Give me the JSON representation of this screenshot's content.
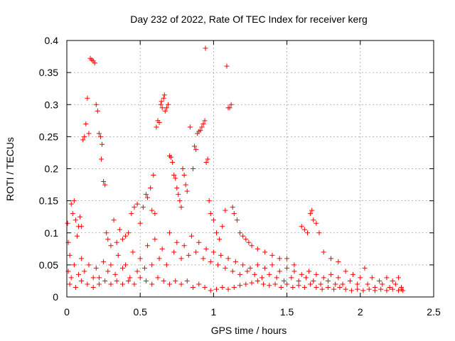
{
  "chart_data": {
    "type": "scatter",
    "title": "Day 232 of 2022, Rate Of TEC Index for receiver kerg",
    "xlabel": "GPS time / hours",
    "ylabel": "ROTI / TECUs",
    "xlim": [
      0,
      2.5
    ],
    "ylim": [
      0,
      0.4
    ],
    "x_ticks": [
      0,
      0.5,
      1,
      1.5,
      2,
      2.5
    ],
    "x_tick_labels": [
      "0",
      "0.5",
      "1",
      "1.5",
      "2",
      "2.5"
    ],
    "y_ticks": [
      0,
      0.05,
      0.1,
      0.15,
      0.2,
      0.25,
      0.3,
      0.35,
      0.4
    ],
    "y_tick_labels": [
      "0",
      "0.05",
      "0.1",
      "0.15",
      "0.2",
      "0.25",
      "0.3",
      "0.35",
      "0.4"
    ],
    "grid": true,
    "marker": "plus",
    "marker_color": "#ff0000",
    "series": [
      {
        "points": [
          [
            0.005,
            0.115
          ],
          [
            0.01,
            0.085
          ],
          [
            0.02,
            0.065
          ],
          [
            0.03,
            0.145
          ],
          [
            0.04,
            0.13
          ],
          [
            0.05,
            0.15
          ],
          [
            0.06,
            0.12
          ],
          [
            0.07,
            0.095
          ],
          [
            0.08,
            0.11
          ],
          [
            0.09,
            0.125
          ],
          [
            0.1,
            0.11
          ],
          [
            0.11,
            0.245
          ],
          [
            0.12,
            0.25
          ],
          [
            0.13,
            0.27
          ],
          [
            0.14,
            0.31
          ],
          [
            0.15,
            0.255
          ],
          [
            0.16,
            0.372
          ],
          [
            0.17,
            0.37
          ],
          [
            0.18,
            0.368
          ],
          [
            0.19,
            0.365
          ],
          [
            0.2,
            0.3
          ],
          [
            0.21,
            0.29
          ],
          [
            0.22,
            0.255
          ],
          [
            0.23,
            0.25
          ],
          [
            0.235,
            0.215
          ],
          [
            0.24,
            0.238
          ],
          [
            0.25,
            0.18
          ],
          [
            0.26,
            0.175
          ],
          [
            0.27,
            0.1
          ],
          [
            0.28,
            0.09
          ],
          [
            0.3,
            0.08
          ],
          [
            0.32,
            0.12
          ],
          [
            0.34,
            0.085
          ],
          [
            0.36,
            0.105
          ],
          [
            0.38,
            0.09
          ],
          [
            0.4,
            0.095
          ],
          [
            0.42,
            0.1
          ],
          [
            0.44,
            0.13
          ],
          [
            0.46,
            0.14
          ],
          [
            0.48,
            0.145
          ],
          [
            0.5,
            0.115
          ],
          [
            0.52,
            0.14
          ],
          [
            0.54,
            0.16
          ],
          [
            0.55,
            0.155
          ],
          [
            0.57,
            0.17
          ],
          [
            0.58,
            0.135
          ],
          [
            0.59,
            0.19
          ],
          [
            0.6,
            0.13
          ],
          [
            0.61,
            0.265
          ],
          [
            0.62,
            0.275
          ],
          [
            0.63,
            0.272
          ],
          [
            0.64,
            0.3
          ],
          [
            0.645,
            0.305
          ],
          [
            0.65,
            0.295
          ],
          [
            0.66,
            0.31
          ],
          [
            0.665,
            0.315
          ],
          [
            0.67,
            0.29
          ],
          [
            0.68,
            0.295
          ],
          [
            0.69,
            0.3
          ],
          [
            0.7,
            0.22
          ],
          [
            0.71,
            0.218
          ],
          [
            0.72,
            0.21
          ],
          [
            0.73,
            0.19
          ],
          [
            0.74,
            0.185
          ],
          [
            0.75,
            0.17
          ],
          [
            0.76,
            0.16
          ],
          [
            0.77,
            0.15
          ],
          [
            0.78,
            0.14
          ],
          [
            0.79,
            0.2
          ],
          [
            0.8,
            0.19
          ],
          [
            0.81,
            0.175
          ],
          [
            0.82,
            0.165
          ],
          [
            0.84,
            0.265
          ],
          [
            0.86,
            0.2
          ],
          [
            0.87,
            0.235
          ],
          [
            0.88,
            0.23
          ],
          [
            0.89,
            0.255
          ],
          [
            0.9,
            0.258
          ],
          [
            0.91,
            0.26
          ],
          [
            0.92,
            0.265
          ],
          [
            0.93,
            0.27
          ],
          [
            0.94,
            0.275
          ],
          [
            0.945,
            0.388
          ],
          [
            0.95,
            0.21
          ],
          [
            0.96,
            0.215
          ],
          [
            0.97,
            0.15
          ],
          [
            0.98,
            0.13
          ],
          [
            1.0,
            0.12
          ],
          [
            1.02,
            0.1
          ],
          [
            1.04,
            0.09
          ],
          [
            1.06,
            0.11
          ],
          [
            1.08,
            0.135
          ],
          [
            1.09,
            0.36
          ],
          [
            1.1,
            0.295
          ],
          [
            1.11,
            0.295
          ],
          [
            1.12,
            0.3
          ],
          [
            1.13,
            0.14
          ],
          [
            1.14,
            0.13
          ],
          [
            1.16,
            0.12
          ],
          [
            1.18,
            0.1
          ],
          [
            1.2,
            0.095
          ],
          [
            1.22,
            0.09
          ],
          [
            1.24,
            0.085
          ],
          [
            1.26,
            0.08
          ],
          [
            1.3,
            0.075
          ],
          [
            1.35,
            0.07
          ],
          [
            1.4,
            0.065
          ],
          [
            1.45,
            0.06
          ],
          [
            1.5,
            0.06
          ],
          [
            1.55,
            0.05
          ],
          [
            1.6,
            0.11
          ],
          [
            1.62,
            0.105
          ],
          [
            1.64,
            0.1
          ],
          [
            1.66,
            0.13
          ],
          [
            1.67,
            0.135
          ],
          [
            1.68,
            0.12
          ],
          [
            1.7,
            0.115
          ],
          [
            1.72,
            0.1
          ],
          [
            1.75,
            0.07
          ],
          [
            1.8,
            0.06
          ],
          [
            1.85,
            0.055
          ],
          [
            0.01,
            0.04
          ],
          [
            0.03,
            0.03
          ],
          [
            0.05,
            0.05
          ],
          [
            0.08,
            0.035
          ],
          [
            0.1,
            0.06
          ],
          [
            0.12,
            0.04
          ],
          [
            0.15,
            0.05
          ],
          [
            0.18,
            0.03
          ],
          [
            0.2,
            0.045
          ],
          [
            0.22,
            0.03
          ],
          [
            0.25,
            0.055
          ],
          [
            0.28,
            0.04
          ],
          [
            0.3,
            0.05
          ],
          [
            0.33,
            0.035
          ],
          [
            0.35,
            0.065
          ],
          [
            0.38,
            0.045
          ],
          [
            0.4,
            0.05
          ],
          [
            0.43,
            0.03
          ],
          [
            0.45,
            0.07
          ],
          [
            0.48,
            0.04
          ],
          [
            0.5,
            0.06
          ],
          [
            0.53,
            0.045
          ],
          [
            0.55,
            0.08
          ],
          [
            0.58,
            0.05
          ],
          [
            0.6,
            0.09
          ],
          [
            0.63,
            0.06
          ],
          [
            0.65,
            0.075
          ],
          [
            0.68,
            0.05
          ],
          [
            0.7,
            0.1
          ],
          [
            0.73,
            0.07
          ],
          [
            0.75,
            0.085
          ],
          [
            0.78,
            0.06
          ],
          [
            0.8,
            0.08
          ],
          [
            0.83,
            0.065
          ],
          [
            0.85,
            0.095
          ],
          [
            0.88,
            0.07
          ],
          [
            0.9,
            0.085
          ],
          [
            0.93,
            0.06
          ],
          [
            0.95,
            0.075
          ],
          [
            0.98,
            0.055
          ],
          [
            1.0,
            0.07
          ],
          [
            1.03,
            0.05
          ],
          [
            1.05,
            0.065
          ],
          [
            1.08,
            0.045
          ],
          [
            1.1,
            0.06
          ],
          [
            1.13,
            0.04
          ],
          [
            1.15,
            0.055
          ],
          [
            1.18,
            0.035
          ],
          [
            1.2,
            0.05
          ],
          [
            1.23,
            0.04
          ],
          [
            1.25,
            0.045
          ],
          [
            1.28,
            0.035
          ],
          [
            1.3,
            0.05
          ],
          [
            1.33,
            0.03
          ],
          [
            1.35,
            0.045
          ],
          [
            1.38,
            0.035
          ],
          [
            1.4,
            0.05
          ],
          [
            1.43,
            0.03
          ],
          [
            1.45,
            0.04
          ],
          [
            1.48,
            0.025
          ],
          [
            1.5,
            0.045
          ],
          [
            1.53,
            0.03
          ],
          [
            1.55,
            0.04
          ],
          [
            1.58,
            0.025
          ],
          [
            1.6,
            0.035
          ],
          [
            1.63,
            0.03
          ],
          [
            1.65,
            0.04
          ],
          [
            1.68,
            0.025
          ],
          [
            1.7,
            0.035
          ],
          [
            1.73,
            0.02
          ],
          [
            1.75,
            0.03
          ],
          [
            1.78,
            0.025
          ],
          [
            1.8,
            0.035
          ],
          [
            1.83,
            0.02
          ],
          [
            1.85,
            0.03
          ],
          [
            1.88,
            0.02
          ],
          [
            1.9,
            0.04
          ],
          [
            1.93,
            0.025
          ],
          [
            1.95,
            0.035
          ],
          [
            1.98,
            0.02
          ],
          [
            2.0,
            0.03
          ],
          [
            2.03,
            0.045
          ],
          [
            2.05,
            0.02
          ],
          [
            2.08,
            0.03
          ],
          [
            2.1,
            0.015
          ],
          [
            2.13,
            0.025
          ],
          [
            2.15,
            0.02
          ],
          [
            2.18,
            0.03
          ],
          [
            2.2,
            0.015
          ],
          [
            2.22,
            0.025
          ],
          [
            2.24,
            0.02
          ],
          [
            2.26,
            0.03
          ],
          [
            2.28,
            0.015
          ],
          [
            2.29,
            0.01
          ],
          [
            0.02,
            0.02
          ],
          [
            0.06,
            0.015
          ],
          [
            0.1,
            0.025
          ],
          [
            0.14,
            0.02
          ],
          [
            0.18,
            0.015
          ],
          [
            0.22,
            0.02
          ],
          [
            0.26,
            0.025
          ],
          [
            0.3,
            0.02
          ],
          [
            0.34,
            0.025
          ],
          [
            0.38,
            0.02
          ],
          [
            0.42,
            0.025
          ],
          [
            0.46,
            0.02
          ],
          [
            0.5,
            0.03
          ],
          [
            0.54,
            0.025
          ],
          [
            0.58,
            0.02
          ],
          [
            0.62,
            0.03
          ],
          [
            0.66,
            0.025
          ],
          [
            0.7,
            0.02
          ],
          [
            0.74,
            0.025
          ],
          [
            0.78,
            0.02
          ],
          [
            0.82,
            0.025
          ],
          [
            0.86,
            0.015
          ],
          [
            0.9,
            0.02
          ],
          [
            0.94,
            0.015
          ],
          [
            0.98,
            0.01
          ],
          [
            1.02,
            0.012
          ],
          [
            1.06,
            0.015
          ],
          [
            1.1,
            0.012
          ],
          [
            1.14,
            0.015
          ],
          [
            1.18,
            0.018
          ],
          [
            1.22,
            0.02
          ],
          [
            1.26,
            0.022
          ],
          [
            1.3,
            0.025
          ],
          [
            1.34,
            0.02
          ],
          [
            1.38,
            0.018
          ],
          [
            1.42,
            0.02
          ],
          [
            1.46,
            0.015
          ],
          [
            1.5,
            0.02
          ],
          [
            1.54,
            0.015
          ],
          [
            1.58,
            0.018
          ],
          [
            1.62,
            0.015
          ],
          [
            1.66,
            0.02
          ],
          [
            1.7,
            0.015
          ],
          [
            1.74,
            0.012
          ],
          [
            1.78,
            0.015
          ],
          [
            1.82,
            0.012
          ],
          [
            1.86,
            0.015
          ],
          [
            1.9,
            0.012
          ],
          [
            1.94,
            0.01
          ],
          [
            1.98,
            0.012
          ],
          [
            2.02,
            0.01
          ],
          [
            2.06,
            0.012
          ],
          [
            2.1,
            0.01
          ],
          [
            2.14,
            0.012
          ],
          [
            2.18,
            0.01
          ],
          [
            2.22,
            0.012
          ],
          [
            2.26,
            0.01
          ],
          [
            2.28,
            0.012
          ]
        ]
      }
    ]
  }
}
